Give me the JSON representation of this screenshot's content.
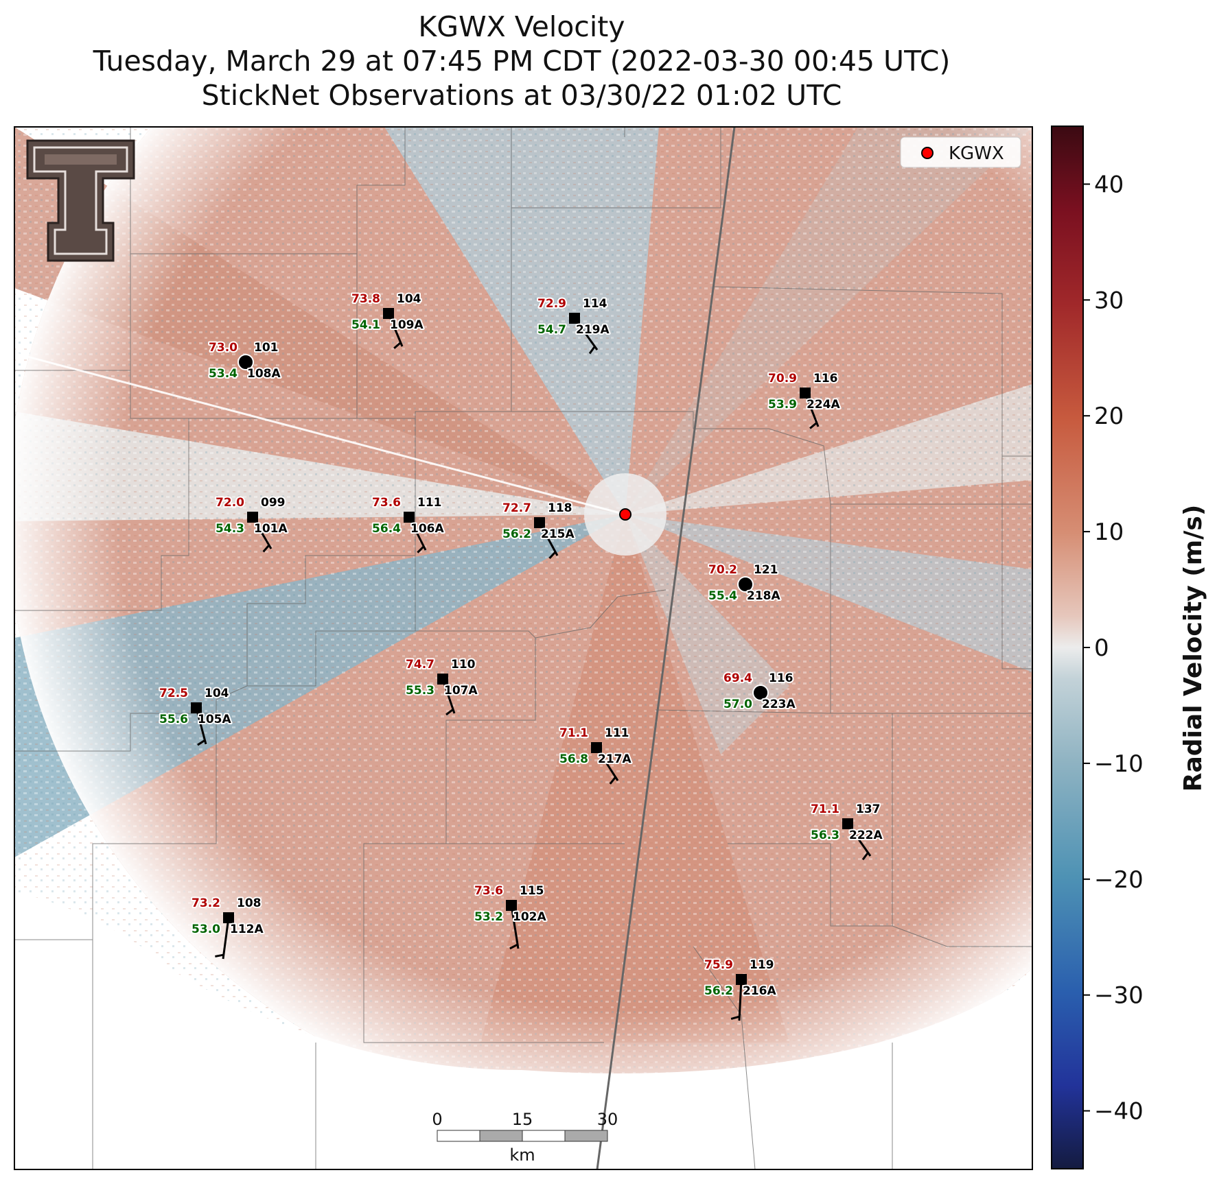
{
  "title": {
    "line1": "KGWX Velocity",
    "line2": "Tuesday, March 29 at 07:45 PM CDT (2022-03-30 00:45 UTC)",
    "line3": "StickNet Observations at 03/30/22 01:02 UTC"
  },
  "legend": {
    "label": "KGWX",
    "marker_color": "#ff0000"
  },
  "colorbar": {
    "label": "Radial Velocity (m/s)",
    "range": [
      -45,
      45
    ],
    "ticks": [
      40,
      30,
      20,
      10,
      0,
      -10,
      -20,
      -30,
      -40
    ],
    "tick_labels": [
      "40",
      "30",
      "20",
      "10",
      "0",
      "−10",
      "−20",
      "−30",
      "−40"
    ]
  },
  "scale_bar": {
    "labels": [
      "0",
      "15",
      "30"
    ],
    "unit": "km"
  },
  "logo": {
    "name": "texas-tech-double-t-logo",
    "color": "#5a4a45"
  },
  "stations": [
    {
      "id": "108A",
      "temp": "73.0",
      "dew": "53.4",
      "pres": "101",
      "marker": "circle"
    },
    {
      "id": "109A",
      "temp": "73.8",
      "dew": "54.1",
      "pres": "104",
      "marker": "square"
    },
    {
      "id": "219A",
      "temp": "72.9",
      "dew": "54.7",
      "pres": "114",
      "marker": "square"
    },
    {
      "id": "224A",
      "temp": "70.9",
      "dew": "53.9",
      "pres": "116",
      "marker": "square"
    },
    {
      "id": "101A",
      "temp": "72.0",
      "dew": "54.3",
      "pres": "099",
      "marker": "square"
    },
    {
      "id": "106A",
      "temp": "73.6",
      "dew": "56.4",
      "pres": "111",
      "marker": "square"
    },
    {
      "id": "215A",
      "temp": "72.7",
      "dew": "56.2",
      "pres": "118",
      "marker": "square"
    },
    {
      "id": "218A",
      "temp": "70.2",
      "dew": "55.4",
      "pres": "121",
      "marker": "circle"
    },
    {
      "id": "107A",
      "temp": "74.7",
      "dew": "55.3",
      "pres": "110",
      "marker": "square"
    },
    {
      "id": "105A",
      "temp": "72.5",
      "dew": "55.6",
      "pres": "104",
      "marker": "square"
    },
    {
      "id": "223A",
      "temp": "69.4",
      "dew": "57.0",
      "pres": "116",
      "marker": "circle"
    },
    {
      "id": "217A",
      "temp": "71.1",
      "dew": "56.8",
      "pres": "111",
      "marker": "square"
    },
    {
      "id": "222A",
      "temp": "71.1",
      "dew": "56.3",
      "pres": "137",
      "marker": "square"
    },
    {
      "id": "112A",
      "temp": "73.2",
      "dew": "53.0",
      "pres": "108",
      "marker": "square"
    },
    {
      "id": "102A",
      "temp": "73.6",
      "dew": "53.2",
      "pres": "115",
      "marker": "square"
    },
    {
      "id": "216A",
      "temp": "75.9",
      "dew": "56.2",
      "pres": "119",
      "marker": "square"
    }
  ]
}
